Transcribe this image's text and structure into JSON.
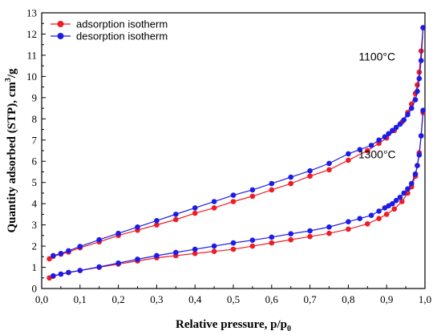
{
  "chart_data": {
    "type": "line",
    "xlabel_main": "Relative pressure, p/p",
    "xlabel_sub": "0",
    "ylabel_main": "Quantity adsorbed (STP), cm",
    "ylabel_sup": "3",
    "ylabel_end": "/g",
    "xlim": [
      0.0,
      1.0
    ],
    "ylim": [
      0,
      13
    ],
    "xticks": [
      0.0,
      0.1,
      0.2,
      0.3,
      0.4,
      0.5,
      0.6,
      0.7,
      0.8,
      0.9,
      1.0
    ],
    "xtick_labels": [
      "0,0",
      "0,1",
      "0,2",
      "0,3",
      "0,4",
      "0,5",
      "0,6",
      "0,7",
      "0,8",
      "0,9",
      "1,0"
    ],
    "yticks": [
      0,
      1,
      2,
      3,
      4,
      5,
      6,
      7,
      8,
      9,
      10,
      11,
      12,
      13
    ],
    "ytick_labels": [
      "0",
      "1",
      "2",
      "3",
      "4",
      "5",
      "6",
      "7",
      "8",
      "9",
      "10",
      "11",
      "12",
      "13"
    ],
    "grid": false,
    "legend_position": "top-left",
    "legend": [
      {
        "label": "adsorption isotherm",
        "color": "#ee1c24"
      },
      {
        "label": "desorption isotherm",
        "color": "#1c1ce6"
      }
    ],
    "annotations": [
      {
        "text": "1100°C",
        "x": 0.875,
        "y": 10.75
      },
      {
        "text": "1300°C",
        "x": 0.875,
        "y": 6.15
      }
    ],
    "series": [
      {
        "group": "1100°C",
        "kind": "adsorption",
        "color": "#ee1c24",
        "x": [
          0.02,
          0.03,
          0.05,
          0.07,
          0.1,
          0.15,
          0.2,
          0.25,
          0.3,
          0.35,
          0.4,
          0.45,
          0.5,
          0.55,
          0.6,
          0.65,
          0.7,
          0.75,
          0.8,
          0.85,
          0.88,
          0.9,
          0.92,
          0.94,
          0.955,
          0.965,
          0.975,
          0.98,
          0.985,
          0.99,
          0.995
        ],
        "y": [
          1.4,
          1.52,
          1.62,
          1.72,
          1.92,
          2.2,
          2.5,
          2.75,
          3.0,
          3.25,
          3.55,
          3.8,
          4.1,
          4.35,
          4.65,
          4.95,
          5.3,
          5.6,
          6.05,
          6.5,
          6.85,
          7.1,
          7.45,
          7.85,
          8.3,
          8.7,
          9.2,
          9.6,
          10.2,
          11.2,
          12.3
        ]
      },
      {
        "group": "1100°C",
        "kind": "desorption",
        "color": "#1c1ce6",
        "x": [
          0.995,
          0.99,
          0.985,
          0.98,
          0.975,
          0.965,
          0.955,
          0.945,
          0.935,
          0.925,
          0.915,
          0.905,
          0.895,
          0.88,
          0.86,
          0.83,
          0.8,
          0.75,
          0.7,
          0.65,
          0.6,
          0.55,
          0.5,
          0.45,
          0.4,
          0.35,
          0.3,
          0.25,
          0.2,
          0.15,
          0.1,
          0.07,
          0.05,
          0.03
        ],
        "y": [
          12.3,
          10.75,
          9.9,
          9.3,
          8.9,
          8.5,
          8.2,
          7.95,
          7.75,
          7.6,
          7.45,
          7.3,
          7.15,
          7.0,
          6.75,
          6.55,
          6.35,
          5.9,
          5.55,
          5.25,
          4.95,
          4.65,
          4.4,
          4.1,
          3.8,
          3.5,
          3.2,
          2.9,
          2.6,
          2.3,
          1.98,
          1.78,
          1.65,
          1.55
        ]
      },
      {
        "group": "1300°C",
        "kind": "adsorption",
        "color": "#ee1c24",
        "x": [
          0.02,
          0.03,
          0.05,
          0.07,
          0.1,
          0.15,
          0.2,
          0.25,
          0.3,
          0.35,
          0.4,
          0.45,
          0.5,
          0.55,
          0.6,
          0.65,
          0.7,
          0.75,
          0.8,
          0.85,
          0.88,
          0.9,
          0.92,
          0.94,
          0.955,
          0.965,
          0.975,
          0.98,
          0.985,
          0.99,
          0.995
        ],
        "y": [
          0.5,
          0.58,
          0.68,
          0.75,
          0.85,
          1.0,
          1.15,
          1.3,
          1.45,
          1.55,
          1.65,
          1.75,
          1.85,
          2.0,
          2.15,
          2.3,
          2.45,
          2.6,
          2.8,
          3.05,
          3.3,
          3.5,
          3.75,
          4.1,
          4.5,
          4.8,
          5.3,
          5.8,
          6.4,
          7.2,
          8.3
        ]
      },
      {
        "group": "1300°C",
        "kind": "desorption",
        "color": "#1c1ce6",
        "x": [
          0.995,
          0.99,
          0.985,
          0.98,
          0.975,
          0.965,
          0.955,
          0.945,
          0.935,
          0.925,
          0.915,
          0.905,
          0.895,
          0.88,
          0.86,
          0.83,
          0.8,
          0.75,
          0.7,
          0.65,
          0.6,
          0.55,
          0.5,
          0.45,
          0.4,
          0.35,
          0.3,
          0.25,
          0.2,
          0.15,
          0.1,
          0.07,
          0.05,
          0.03
        ],
        "y": [
          8.4,
          7.2,
          6.3,
          5.8,
          5.4,
          4.95,
          4.7,
          4.5,
          4.3,
          4.15,
          4.0,
          3.9,
          3.8,
          3.65,
          3.45,
          3.3,
          3.15,
          2.9,
          2.72,
          2.58,
          2.42,
          2.28,
          2.15,
          2.0,
          1.85,
          1.7,
          1.55,
          1.38,
          1.2,
          1.02,
          0.85,
          0.76,
          0.68,
          0.6
        ]
      }
    ]
  }
}
